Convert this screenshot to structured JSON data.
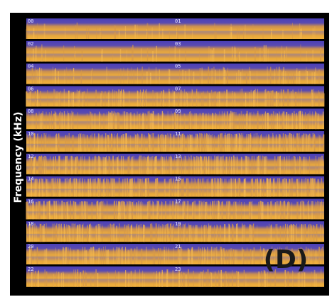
{
  "ylabel": "Frequency (kHz)",
  "panel_label": "(D)",
  "rows": [
    {
      "left": "00",
      "right": "01"
    },
    {
      "left": "02",
      "right": "03"
    },
    {
      "left": "04",
      "right": "05"
    },
    {
      "left": "06",
      "right": "07"
    },
    {
      "left": "08",
      "right": "09"
    },
    {
      "left": "10",
      "right": "11"
    },
    {
      "left": "12",
      "right": "13"
    },
    {
      "left": "14",
      "right": "15"
    },
    {
      "left": "16",
      "right": "17"
    },
    {
      "left": "18",
      "right": "19"
    },
    {
      "left": "20",
      "right": "21"
    },
    {
      "left": "22",
      "right": "23"
    }
  ]
}
